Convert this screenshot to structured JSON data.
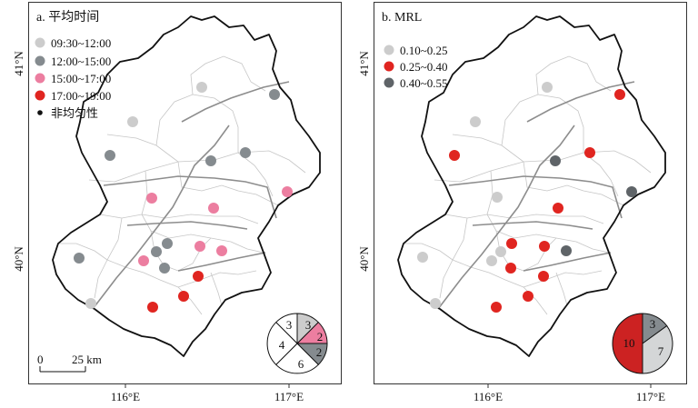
{
  "panels": [
    {
      "id": "a",
      "title": "a. 平均时间",
      "legend": [
        {
          "label": "09:30~12:00",
          "color": "#cccccc"
        },
        {
          "label": "12:00~15:00",
          "color": "#858b8f"
        },
        {
          "label": "15:00~17:00",
          "color": "#ec7ea0"
        },
        {
          "label": "17:00~19:00",
          "color": "#e02520"
        },
        {
          "label": "非均匀性",
          "color": "#111111",
          "small": true
        }
      ],
      "ytick_top": "41°N",
      "ytick_bottom": "40°N",
      "xtick_left": "116°E",
      "xtick_right": "117°E",
      "scalebar": {
        "zero": "0",
        "label": "25 km"
      },
      "pie": [
        {
          "value": "3",
          "color": "#ffffff"
        },
        {
          "value": "3",
          "color": "#cccccc"
        },
        {
          "value": "2",
          "color": "#ec7ea0"
        },
        {
          "value": "2",
          "color": "#858b8f"
        },
        {
          "value": "6",
          "color": "#ffffff"
        },
        {
          "value": "4",
          "color": "#ffffff"
        }
      ]
    },
    {
      "id": "b",
      "title": "b. MRL",
      "legend": [
        {
          "label": "0.10~0.25",
          "color": "#cccccc"
        },
        {
          "label": "0.25~0.40",
          "color": "#e02520"
        },
        {
          "label": "0.40~0.55",
          "color": "#5f6468"
        }
      ],
      "ytick_top": "41°N",
      "ytick_bottom": "40°N",
      "xtick_left": "116°E",
      "xtick_right": "117°E",
      "pie": [
        {
          "value": "3",
          "color": "#858b8f"
        },
        {
          "value": "7",
          "color": "#d4d6d7"
        },
        {
          "value": "10",
          "color": "#cc2222"
        }
      ]
    }
  ]
}
